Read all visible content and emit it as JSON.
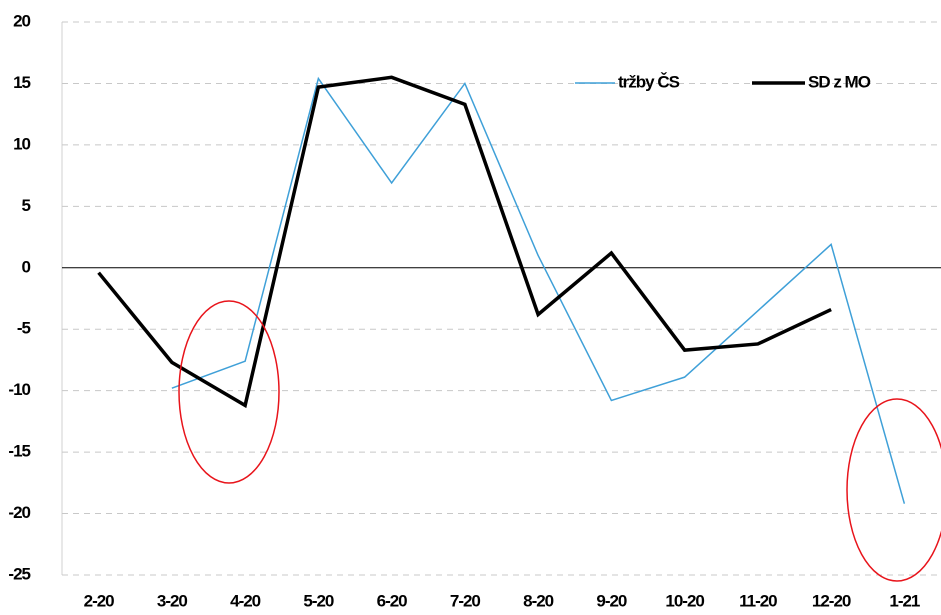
{
  "chart_data": {
    "type": "line",
    "categories": [
      "2-20",
      "3-20",
      "4-20",
      "5-20",
      "6-20",
      "7-20",
      "8-20",
      "9-20",
      "10-20",
      "11-20",
      "12-20",
      "1-21"
    ],
    "series": [
      {
        "name": "tržby ČS",
        "color": "#3fa0d8",
        "width": 1.5,
        "values": [
          null,
          -9.8,
          -7.6,
          15.4,
          6.9,
          15.0,
          1.0,
          -10.8,
          -8.9,
          -3.5,
          1.9,
          -19.2
        ]
      },
      {
        "name": "SD z MO",
        "color": "#000000",
        "width": 3.5,
        "values": [
          -0.4,
          -7.7,
          -11.2,
          14.7,
          15.5,
          13.3,
          -3.8,
          1.2,
          -6.7,
          -6.2,
          -3.4,
          null
        ]
      }
    ],
    "ylim": [
      -25,
      20
    ],
    "yticks": [
      -25,
      -20,
      -15,
      -10,
      -5,
      0,
      5,
      10,
      15,
      20
    ],
    "grid": true,
    "legend": "top-right"
  }
}
